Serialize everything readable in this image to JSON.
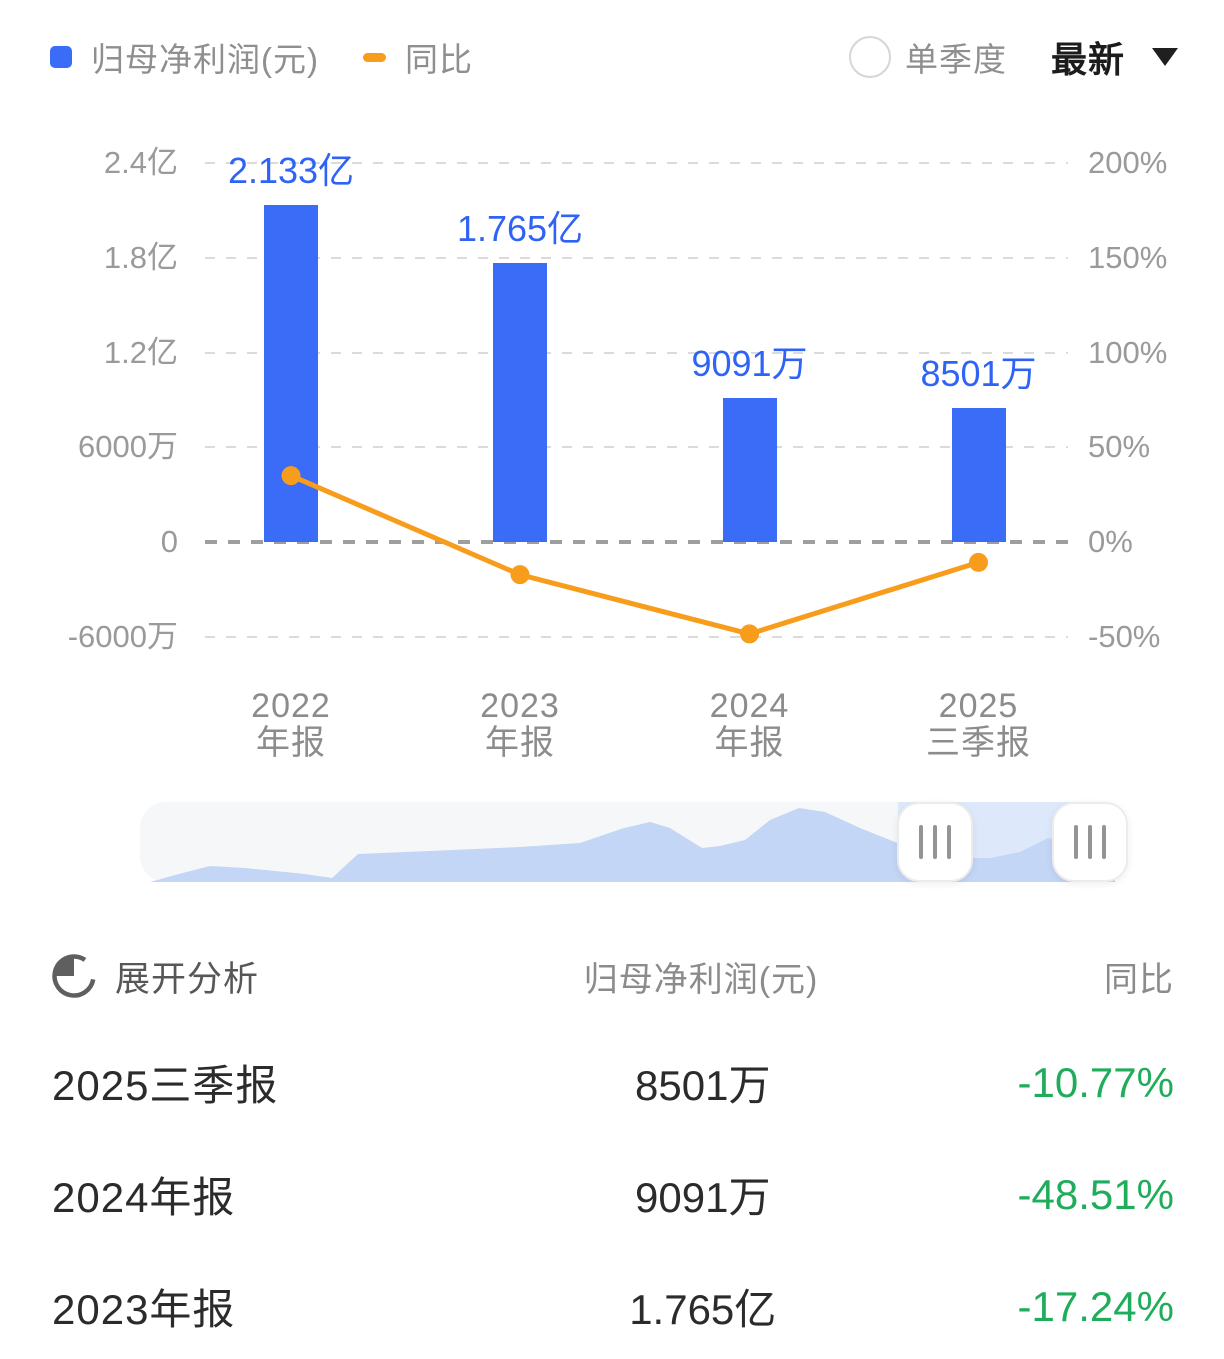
{
  "colors": {
    "bar_blue": "#3A6CF8",
    "bar_label_blue": "#2F63F6",
    "line_orange": "#F89C1C",
    "axis_gray": "#9A9A9A",
    "yoy_negative_green": "#1FAD5C",
    "text_dark": "#2B2B2B"
  },
  "legend": {
    "bar_label": "归母净利润(元)",
    "line_label": "同比"
  },
  "controls": {
    "radio_label": "单季度",
    "radio_checked": false,
    "dropdown_value": "最新"
  },
  "chart_data": {
    "type": "bar",
    "title": "归母净利润(元) 与 同比",
    "categories": [
      "2022年报",
      "2023年报",
      "2024年报",
      "2025三季报"
    ],
    "categories_lines": [
      [
        "2022",
        "年报"
      ],
      [
        "2023",
        "年报"
      ],
      [
        "2024",
        "年报"
      ],
      [
        "2025",
        "三季报"
      ]
    ],
    "series": [
      {
        "name": "归母净利润(元)",
        "type": "bar",
        "axis": "left",
        "values_yi": [
          2.133,
          1.765,
          0.9091,
          0.8501
        ],
        "labels": [
          "2.133亿",
          "1.765亿",
          "9091万",
          "8501万"
        ],
        "color": "#3A6CF8"
      },
      {
        "name": "同比",
        "type": "line",
        "axis": "right",
        "values_pct": [
          35.0,
          -17.24,
          -48.51,
          -10.77
        ],
        "color": "#F89C1C"
      }
    ],
    "left_axis": {
      "ticks": [
        "2.4亿",
        "1.8亿",
        "1.2亿",
        "6000万",
        "0",
        "-6000万"
      ],
      "unit": "元"
    },
    "right_axis": {
      "ticks": [
        "200%",
        "150%",
        "100%",
        "50%",
        "0%",
        "-50%"
      ],
      "unit": "%"
    },
    "grid": true,
    "legend_position": "top-left"
  },
  "table": {
    "header": {
      "analyze_label": "展开分析",
      "value_col": "归母净利润(元)",
      "yoy_col": "同比"
    },
    "rows": [
      {
        "period": "2025三季报",
        "value": "8501万",
        "yoy": "-10.77%"
      },
      {
        "period": "2024年报",
        "value": "9091万",
        "yoy": "-48.51%"
      },
      {
        "period": "2023年报",
        "value": "1.765亿",
        "yoy": "-17.24%"
      }
    ]
  }
}
